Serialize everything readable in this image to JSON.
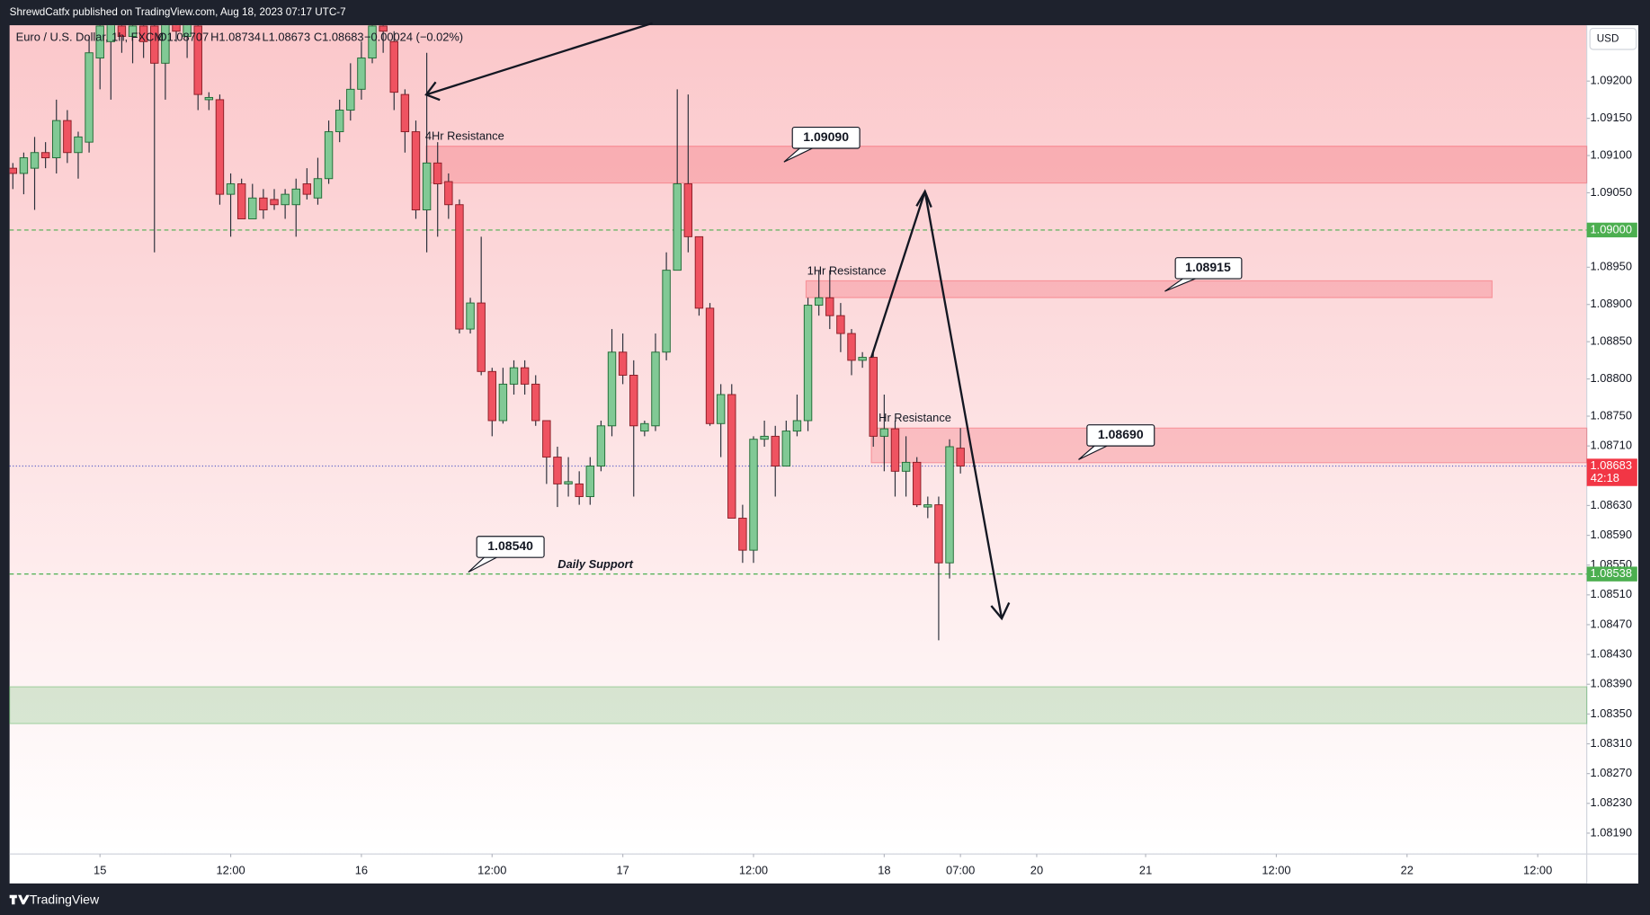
{
  "top_text": "ShrewdCatfx published on TradingView.com, Aug 18, 2023 07:17 UTC-7",
  "footer": "TradingView",
  "chart_data": {
    "type": "candlestick",
    "legend": {
      "symbol": "Euro / U.S. Dollar, 1h, FXCM",
      "open": "O1.08707",
      "high": "H1.08734",
      "low": "L1.08673",
      "close": "C1.08683",
      "change": "−0.00024 (−0.02%)"
    },
    "currency": "USD",
    "up_color": "#81c995",
    "down_color": "#ef5361",
    "open": [
      1.09083,
      1.09076,
      1.09083,
      1.09104,
      1.09097,
      1.09147,
      1.09104,
      1.09118,
      1.09231,
      1.09253,
      1.09274,
      1.0926,
      1.09274,
      1.09274,
      1.09224,
      1.09281,
      1.0926,
      1.09274,
      1.09175,
      1.09175,
      1.09048,
      1.09062,
      1.09015,
      1.09043,
      1.09041,
      1.09034,
      1.09034,
      1.09062,
      1.09043,
      1.09069,
      1.09132,
      1.09161,
      1.09189,
      1.09231,
      1.09274,
      1.09253,
      1.09182,
      1.09132,
      1.09027,
      1.0909,
      1.09065,
      1.09034,
      1.08867,
      1.08902,
      1.0881,
      1.08744,
      1.08793,
      1.08815,
      1.08793,
      1.08744,
      1.08695,
      1.08659,
      1.08659,
      1.08642,
      1.08683,
      1.08737,
      1.08836,
      1.08805,
      1.0873,
      1.08737,
      1.08836,
      1.08946,
      1.09062,
      1.08991,
      1.08895,
      1.0874,
      1.08779,
      1.08613,
      1.0857,
      1.08719,
      1.08723,
      1.08683,
      1.0873,
      1.08744,
      1.08899,
      1.08909,
      1.08885,
      1.08861,
      1.08825,
      1.08829,
      1.08723,
      1.08733,
      1.08676,
      1.08688,
      1.08628,
      1.08631,
      1.08553,
      1.08707
    ],
    "high": [
      1.0909,
      1.09104,
      1.09125,
      1.09118,
      1.09175,
      1.09161,
      1.09132,
      1.0926,
      1.09288,
      1.09288,
      1.09288,
      1.09288,
      1.09288,
      1.09288,
      1.09288,
      1.09288,
      1.09288,
      1.09288,
      1.09185,
      1.09182,
      1.09076,
      1.09069,
      1.09062,
      1.09055,
      1.09055,
      1.09055,
      1.09069,
      1.09083,
      1.09097,
      1.09147,
      1.09175,
      1.09224,
      1.09253,
      1.09288,
      1.09288,
      1.09267,
      1.09189,
      1.09147,
      1.09238,
      1.09118,
      1.09076,
      1.09041,
      1.08909,
      1.08991,
      1.08815,
      1.08815,
      1.08825,
      1.08825,
      1.08805,
      1.08744,
      1.08709,
      1.08695,
      1.08676,
      1.08695,
      1.08744,
      1.08867,
      1.08861,
      1.08825,
      1.08744,
      1.08861,
      1.0897,
      1.09189,
      1.09182,
      1.08991,
      1.08902,
      1.08793,
      1.08793,
      1.08631,
      1.08723,
      1.08744,
      1.08737,
      1.08744,
      1.08779,
      1.08909,
      1.08946,
      1.08946,
      1.08902,
      1.08867,
      1.08836,
      1.08836,
      1.08779,
      1.08744,
      1.08723,
      1.08695,
      1.08642,
      1.08642,
      1.08719,
      1.08734
    ],
    "low": [
      1.09055,
      1.09048,
      1.09027,
      1.09083,
      1.09076,
      1.0909,
      1.09069,
      1.09104,
      1.09189,
      1.09175,
      1.09238,
      1.09224,
      1.09231,
      1.0897,
      1.09175,
      1.09253,
      1.09231,
      1.09161,
      1.09161,
      1.09034,
      1.08991,
      1.09015,
      1.09015,
      1.09015,
      1.09027,
      1.09015,
      1.08991,
      1.09041,
      1.09034,
      1.09062,
      1.09118,
      1.09147,
      1.09175,
      1.09224,
      1.09238,
      1.09161,
      1.09104,
      1.09015,
      1.0897,
      1.08991,
      1.09015,
      1.08861,
      1.08861,
      1.08805,
      1.08723,
      1.0874,
      1.08779,
      1.08779,
      1.08737,
      1.08659,
      1.08628,
      1.08642,
      1.08631,
      1.08631,
      1.08676,
      1.08723,
      1.08793,
      1.08642,
      1.08723,
      1.0873,
      1.08825,
      1.08946,
      1.0897,
      1.08885,
      1.08737,
      1.08695,
      1.08613,
      1.08553,
      1.08553,
      1.08709,
      1.08642,
      1.08683,
      1.08723,
      1.0873,
      1.08885,
      1.08867,
      1.08836,
      1.08805,
      1.08815,
      1.08709,
      1.08676,
      1.08642,
      1.08642,
      1.08628,
      1.08613,
      1.08449,
      1.08532,
      1.08673
    ],
    "close": [
      1.09076,
      1.09097,
      1.09104,
      1.09097,
      1.09147,
      1.09104,
      1.09125,
      1.09238,
      1.09274,
      1.09281,
      1.0926,
      1.09274,
      1.09253,
      1.09224,
      1.09281,
      1.09267,
      1.09288,
      1.09182,
      1.09178,
      1.09048,
      1.09062,
      1.09015,
      1.09043,
      1.09027,
      1.09034,
      1.09048,
      1.09055,
      1.09048,
      1.09069,
      1.09132,
      1.09161,
      1.09189,
      1.09231,
      1.09274,
      1.09267,
      1.09185,
      1.09132,
      1.09027,
      1.0909,
      1.09062,
      1.09034,
      1.08867,
      1.08902,
      1.0881,
      1.08744,
      1.08793,
      1.08815,
      1.08793,
      1.08744,
      1.08695,
      1.08659,
      1.08662,
      1.08642,
      1.08683,
      1.08737,
      1.08836,
      1.08805,
      1.08737,
      1.0874,
      1.08836,
      1.08946,
      1.09062,
      1.08991,
      1.08895,
      1.0874,
      1.08779,
      1.08613,
      1.0857,
      1.08719,
      1.08723,
      1.08683,
      1.0873,
      1.08744,
      1.08899,
      1.08909,
      1.08885,
      1.08861,
      1.08825,
      1.08829,
      1.08723,
      1.08733,
      1.08676,
      1.08688,
      1.08631,
      1.08631,
      1.08553,
      1.08709,
      1.08683
    ],
    "xlim": [
      -0.3,
      144.5
    ],
    "xticks": [
      {
        "value": 8,
        "label": "15"
      },
      {
        "value": 20,
        "label": "12:00"
      },
      {
        "value": 32,
        "label": "16"
      },
      {
        "value": 44,
        "label": "12:00"
      },
      {
        "value": 56,
        "label": "17"
      },
      {
        "value": 68,
        "label": "12:00"
      },
      {
        "value": 80,
        "label": "18"
      },
      {
        "value": 87,
        "label": "07:00"
      },
      {
        "value": 94,
        "label": "20"
      },
      {
        "value": 104,
        "label": "21"
      },
      {
        "value": 116,
        "label": "12:00"
      },
      {
        "value": 128,
        "label": "22"
      },
      {
        "value": 140,
        "label": "12:00"
      }
    ],
    "ylim": [
      1.08162,
      1.09275
    ],
    "yticks": [
      {
        "value": 1.092,
        "label": "1.09200"
      },
      {
        "value": 1.0915,
        "label": "1.09150"
      },
      {
        "value": 1.091,
        "label": "1.09100"
      },
      {
        "value": 1.0905,
        "label": "1.09050"
      },
      {
        "value": 1.0895,
        "label": "1.08950"
      },
      {
        "value": 1.089,
        "label": "1.08900"
      },
      {
        "value": 1.0885,
        "label": "1.08850"
      },
      {
        "value": 1.088,
        "label": "1.08800"
      },
      {
        "value": 1.0875,
        "label": "1.08750"
      },
      {
        "value": 1.0871,
        "label": "1.08710"
      },
      {
        "value": 1.0863,
        "label": "1.08630"
      },
      {
        "value": 1.0859,
        "label": "1.08590"
      },
      {
        "value": 1.0855,
        "label": "1.08550"
      },
      {
        "value": 1.0851,
        "label": "1.08510"
      },
      {
        "value": 1.0847,
        "label": "1.08470"
      },
      {
        "value": 1.0843,
        "label": "1.08430"
      },
      {
        "value": 1.0839,
        "label": "1.08390"
      },
      {
        "value": 1.0835,
        "label": "1.08350"
      },
      {
        "value": 1.0831,
        "label": "1.08310"
      },
      {
        "value": 1.0827,
        "label": "1.08270"
      },
      {
        "value": 1.0823,
        "label": "1.08230"
      },
      {
        "value": 1.0819,
        "label": "1.08190"
      }
    ],
    "price_lines": [
      {
        "value": 1.09,
        "label": "1.09000",
        "color": "#4caf50"
      },
      {
        "value": 1.08683,
        "label": "1.08683",
        "color": "#f23645",
        "countdown": "42:18"
      },
      {
        "value": 1.08538,
        "label": "1.08538",
        "color": "#4caf50"
      }
    ],
    "annotations": [
      "4Hr Resistance",
      "1Hr Resistance",
      "Hr Resistance",
      "Daily Support",
      "1.09090",
      "1.08915",
      "1.08690",
      "1.08540"
    ]
  }
}
